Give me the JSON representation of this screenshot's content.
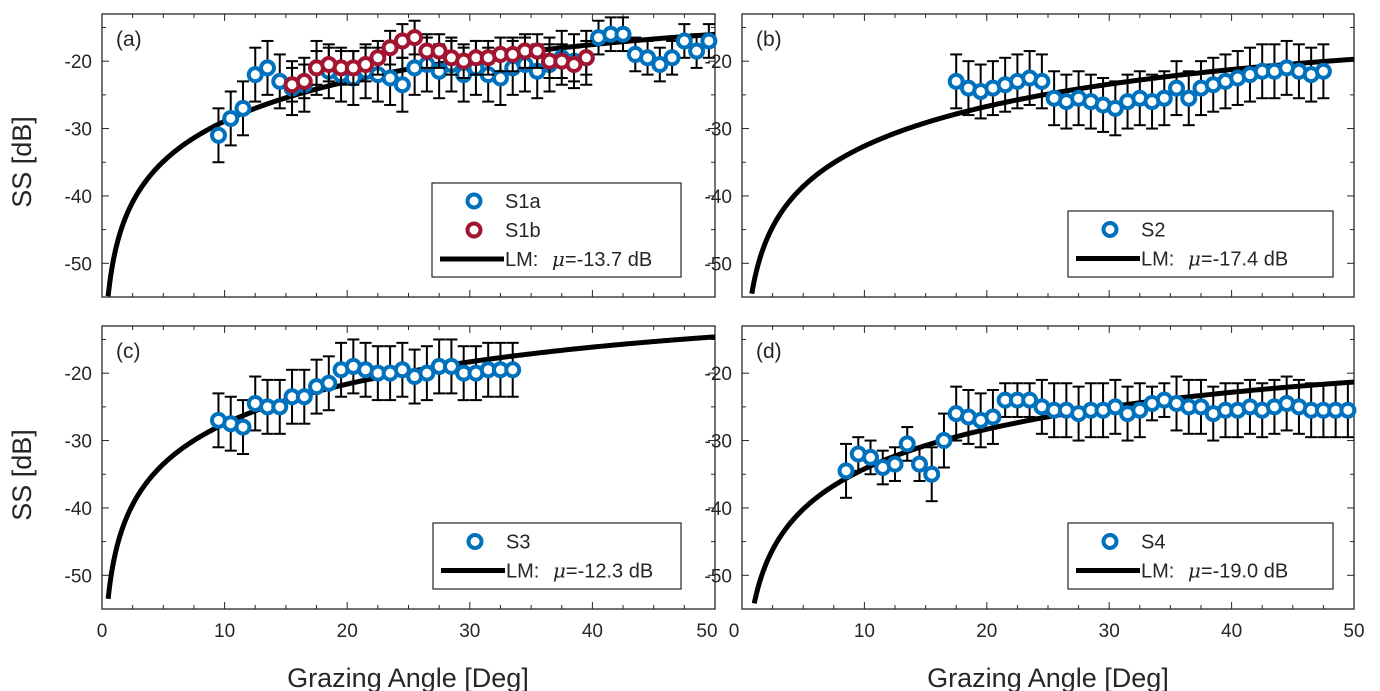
{
  "figure": {
    "xlabel": "Grazing Angle [Deg]",
    "ylabel": "SS [dB]",
    "colors": {
      "S1a": "#0072BD",
      "S1b": "#A2142F",
      "S2": "#0072BD",
      "S3": "#0072BD",
      "S4": "#0072BD",
      "model": "#000000",
      "errorbar": "#000000",
      "axis": "#262626"
    }
  },
  "chart_data": [
    {
      "type": "scatter",
      "panel_label": "(a)",
      "xlim": [
        0,
        50
      ],
      "ylim": [
        -55,
        -13
      ],
      "xticks": [
        0,
        10,
        20,
        30,
        40,
        50
      ],
      "yticks": [
        -50,
        -40,
        -30,
        -20
      ],
      "grid": false,
      "legend_position": "bottom-right",
      "series": [
        {
          "name": "S1a",
          "x": [
            9.5,
            10.5,
            11.5,
            12.5,
            13.5,
            14.5,
            15.5,
            16.5,
            17.5,
            18.5,
            19.5,
            20.5,
            21.5,
            22.5,
            23.5,
            24.5,
            25.5,
            26.5,
            27.5,
            28.5,
            29.5,
            30.5,
            31.5,
            32.5,
            33.5,
            34.5,
            35.5,
            36.5,
            37.5,
            38.5,
            39.5,
            40.5,
            41.5,
            42.5,
            43.5,
            44.5,
            45.5,
            46.5,
            47.5,
            48.5,
            49.5
          ],
          "y": [
            -31.0,
            -28.5,
            -27.0,
            -22.0,
            -21.0,
            -23.0,
            -24.0,
            -23.5,
            -21.0,
            -21.5,
            -22.0,
            -22.5,
            -21.5,
            -22.0,
            -22.5,
            -23.5,
            -21.0,
            -20.5,
            -21.5,
            -20.5,
            -22.0,
            -21.0,
            -22.0,
            -22.5,
            -21.0,
            -20.5,
            -21.5,
            -20.5,
            -19.5,
            -20.0,
            -19.5,
            -16.5,
            -16.0,
            -16.0,
            -19.0,
            -19.5,
            -20.5,
            -19.5,
            -17.0,
            -18.5,
            -17.0
          ],
          "err": [
            4,
            4,
            4,
            4,
            4,
            4,
            4,
            4,
            4,
            4,
            4,
            4,
            4,
            4,
            4,
            4,
            4,
            4,
            4,
            4,
            4,
            4,
            4,
            4,
            4,
            4,
            4,
            4,
            4,
            4,
            4,
            2.5,
            2.5,
            2.5,
            2.5,
            2.5,
            2.5,
            2.5,
            2.5,
            2.5,
            2.5
          ]
        },
        {
          "name": "S1b",
          "x": [
            15.5,
            16.5,
            17.5,
            18.5,
            19.5,
            20.5,
            21.5,
            22.5,
            23.5,
            24.5,
            25.5,
            26.5,
            27.5,
            28.5,
            29.5,
            30.5,
            31.5,
            32.5,
            33.5,
            34.5,
            35.5,
            36.5,
            37.5,
            38.5,
            39.5
          ],
          "y": [
            -23.5,
            -23.0,
            -21.0,
            -20.5,
            -21.0,
            -21.0,
            -20.5,
            -19.5,
            -18.0,
            -17.0,
            -16.5,
            -18.5,
            -18.5,
            -19.5,
            -20.0,
            -19.5,
            -19.5,
            -19.0,
            -19.0,
            -18.5,
            -18.5,
            -20.0,
            -20.0,
            -20.5,
            -19.5
          ],
          "err": [
            2.5,
            2.5,
            2.5,
            2.5,
            2.5,
            2.5,
            2.5,
            2.5,
            2.5,
            2.5,
            2.5,
            2.5,
            2.5,
            2.5,
            2.5,
            2.5,
            2.5,
            2.5,
            2.5,
            2.5,
            2.5,
            2.5,
            2.5,
            2.5,
            2.5
          ]
        }
      ],
      "model": {
        "name": "LM:",
        "mu_label": "μ",
        "mu_value": "=-13.7 dB",
        "mu": -13.7
      }
    },
    {
      "type": "scatter",
      "panel_label": "(b)",
      "xlim": [
        0,
        50
      ],
      "ylim": [
        -55,
        -13
      ],
      "xticks": [
        0,
        10,
        20,
        30,
        40,
        50
      ],
      "yticks": [
        -50,
        -40,
        -30,
        -20
      ],
      "grid": false,
      "legend_position": "bottom-right",
      "series": [
        {
          "name": "S2",
          "x": [
            17.5,
            18.5,
            19.5,
            20.5,
            21.5,
            22.5,
            23.5,
            24.5,
            25.5,
            26.5,
            27.5,
            28.5,
            29.5,
            30.5,
            31.5,
            32.5,
            33.5,
            34.5,
            35.5,
            36.5,
            37.5,
            38.5,
            39.5,
            40.5,
            41.5,
            42.5,
            43.5,
            44.5,
            45.5,
            46.5,
            47.5
          ],
          "y": [
            -23.0,
            -24.0,
            -24.5,
            -24.0,
            -23.5,
            -23.0,
            -22.5,
            -23.0,
            -25.5,
            -26.0,
            -25.5,
            -26.0,
            -26.5,
            -27.0,
            -26.0,
            -25.5,
            -26.0,
            -25.5,
            -24.0,
            -25.5,
            -24.0,
            -23.5,
            -23.0,
            -22.5,
            -22.0,
            -21.5,
            -21.5,
            -21.0,
            -21.5,
            -22.0,
            -21.5
          ],
          "err": [
            4,
            4,
            4,
            4,
            4,
            4,
            4,
            4,
            4,
            4,
            4,
            4,
            4,
            4,
            4,
            4,
            4,
            4,
            4,
            4,
            4,
            4,
            4,
            4,
            4,
            4,
            4,
            4,
            4,
            4,
            4
          ]
        }
      ],
      "model": {
        "name": "LM:",
        "mu_label": "μ",
        "mu_value": "=-17.4 dB",
        "mu": -17.4
      }
    },
    {
      "type": "scatter",
      "panel_label": "(c)",
      "xlim": [
        0,
        50
      ],
      "ylim": [
        -55,
        -13
      ],
      "xticks": [
        0,
        10,
        20,
        30,
        40,
        50
      ],
      "yticks": [
        -50,
        -40,
        -30,
        -20
      ],
      "grid": false,
      "legend_position": "bottom-right",
      "series": [
        {
          "name": "S3",
          "x": [
            9.5,
            10.5,
            11.5,
            12.5,
            13.5,
            14.5,
            15.5,
            16.5,
            17.5,
            18.5,
            19.5,
            20.5,
            21.5,
            22.5,
            23.5,
            24.5,
            25.5,
            26.5,
            27.5,
            28.5,
            29.5,
            30.5,
            31.5,
            32.5,
            33.5
          ],
          "y": [
            -27.0,
            -27.5,
            -28.0,
            -24.5,
            -25.0,
            -25.0,
            -23.5,
            -23.5,
            -22.0,
            -21.5,
            -19.5,
            -19.0,
            -19.5,
            -20.0,
            -20.0,
            -19.5,
            -20.5,
            -20.0,
            -19.0,
            -19.0,
            -20.0,
            -20.0,
            -19.5,
            -19.5,
            -19.5
          ],
          "err": [
            4,
            4,
            4,
            4,
            4,
            4,
            4,
            4,
            4,
            4,
            4,
            4,
            4,
            4,
            4,
            4,
            4,
            4,
            4,
            4,
            4,
            4,
            4,
            4,
            4
          ]
        }
      ],
      "model": {
        "name": "LM:",
        "mu_label": "μ",
        "mu_value": "=-12.3 dB",
        "mu": -12.3
      }
    },
    {
      "type": "scatter",
      "panel_label": "(d)",
      "xlim": [
        0,
        50
      ],
      "ylim": [
        -55,
        -13
      ],
      "xticks": [
        0,
        10,
        20,
        30,
        40,
        50
      ],
      "yticks": [
        -50,
        -40,
        -30,
        -20
      ],
      "grid": false,
      "legend_position": "bottom-right",
      "series": [
        {
          "name": "S4",
          "x": [
            8.5,
            9.5,
            10.5,
            11.5,
            12.5,
            13.5,
            14.5,
            15.5,
            16.5,
            17.5,
            18.5,
            19.5,
            20.5,
            21.5,
            22.5,
            23.5,
            24.5,
            25.5,
            26.5,
            27.5,
            28.5,
            29.5,
            30.5,
            31.5,
            32.5,
            33.5,
            34.5,
            35.5,
            36.5,
            37.5,
            38.5,
            39.5,
            40.5,
            41.5,
            42.5,
            43.5,
            44.5,
            45.5,
            46.5,
            47.5,
            48.5,
            49.5
          ],
          "y": [
            -34.5,
            -32.0,
            -32.5,
            -34.0,
            -33.5,
            -30.5,
            -33.5,
            -35.0,
            -30.0,
            -26.0,
            -26.5,
            -27.0,
            -26.5,
            -24.0,
            -24.0,
            -24.0,
            -25.0,
            -25.5,
            -25.5,
            -26.0,
            -25.5,
            -25.5,
            -25.0,
            -26.0,
            -25.5,
            -24.5,
            -24.0,
            -24.5,
            -25.0,
            -25.0,
            -26.0,
            -25.5,
            -25.5,
            -25.0,
            -25.5,
            -25.0,
            -24.5,
            -25.0,
            -25.5,
            -25.5,
            -25.5,
            -25.5
          ],
          "err": [
            4,
            2.5,
            2.5,
            2.5,
            2.5,
            2.5,
            2.5,
            4,
            4,
            4,
            4,
            4,
            4,
            2.5,
            2.5,
            2.5,
            4,
            4,
            4,
            4,
            4,
            4,
            4,
            4,
            4,
            2.5,
            2.5,
            4,
            4,
            4,
            4,
            4,
            4,
            4,
            4,
            4,
            4,
            4,
            4,
            4,
            4,
            4
          ]
        }
      ],
      "model": {
        "name": "LM:",
        "mu_label": "μ",
        "mu_value": "=-19.0 dB",
        "mu": -19.0
      }
    }
  ]
}
